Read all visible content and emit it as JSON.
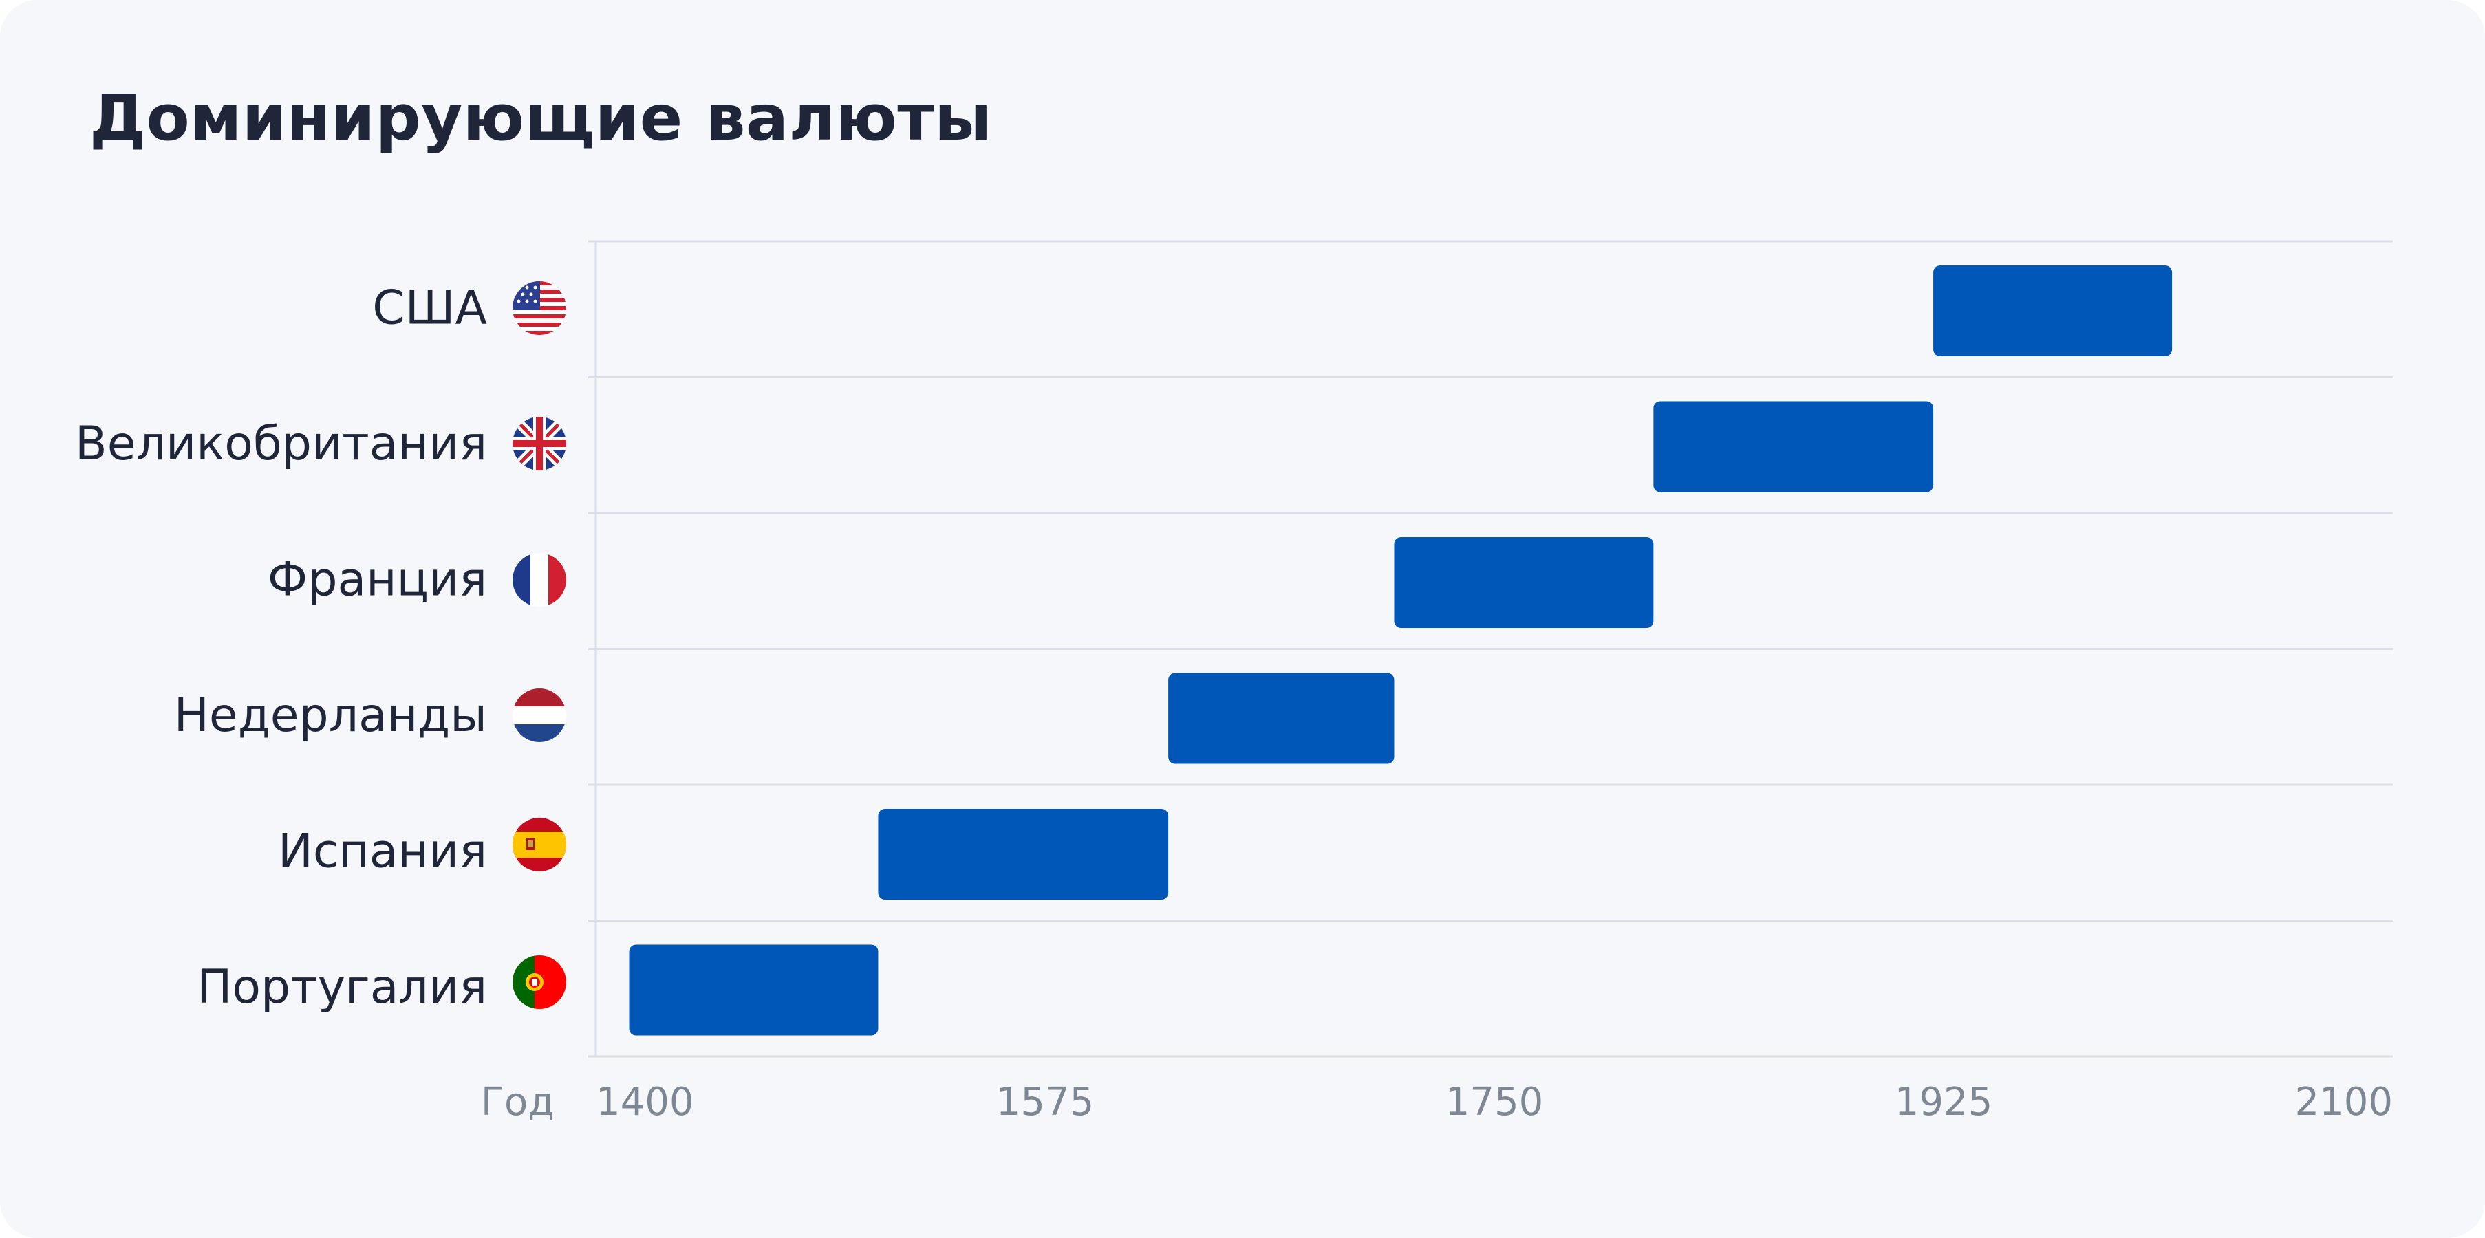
{
  "chart_data": {
    "type": "bar",
    "orientation": "horizontal-range",
    "title": "Доминирующие валюты",
    "xlabel": "Год",
    "xlim": [
      1400,
      2100
    ],
    "xticks": [
      1400,
      1575,
      1750,
      1925,
      2100
    ],
    "grid": true,
    "categories": [
      "США",
      "Великобритания",
      "Франция",
      "Недерланды",
      "Испания",
      "Португалия"
    ],
    "flags": [
      "us-flag-icon",
      "uk-flag-icon",
      "france-flag-icon",
      "netherlands-flag-icon",
      "spain-flag-icon",
      "portugal-flag-icon"
    ],
    "ranges": [
      [
        1921,
        2014
      ],
      [
        1812,
        1921
      ],
      [
        1711,
        1812
      ],
      [
        1623,
        1711
      ],
      [
        1510,
        1623
      ],
      [
        1413,
        1510
      ]
    ],
    "bar_color": "#0057b8"
  }
}
